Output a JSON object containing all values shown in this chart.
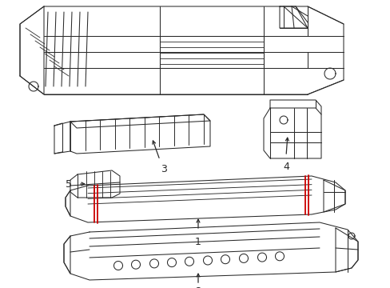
{
  "background_color": "#ffffff",
  "line_color": "#2a2a2a",
  "red_color": "#cc0000",
  "figsize": [
    4.89,
    3.6
  ],
  "dpi": 100
}
